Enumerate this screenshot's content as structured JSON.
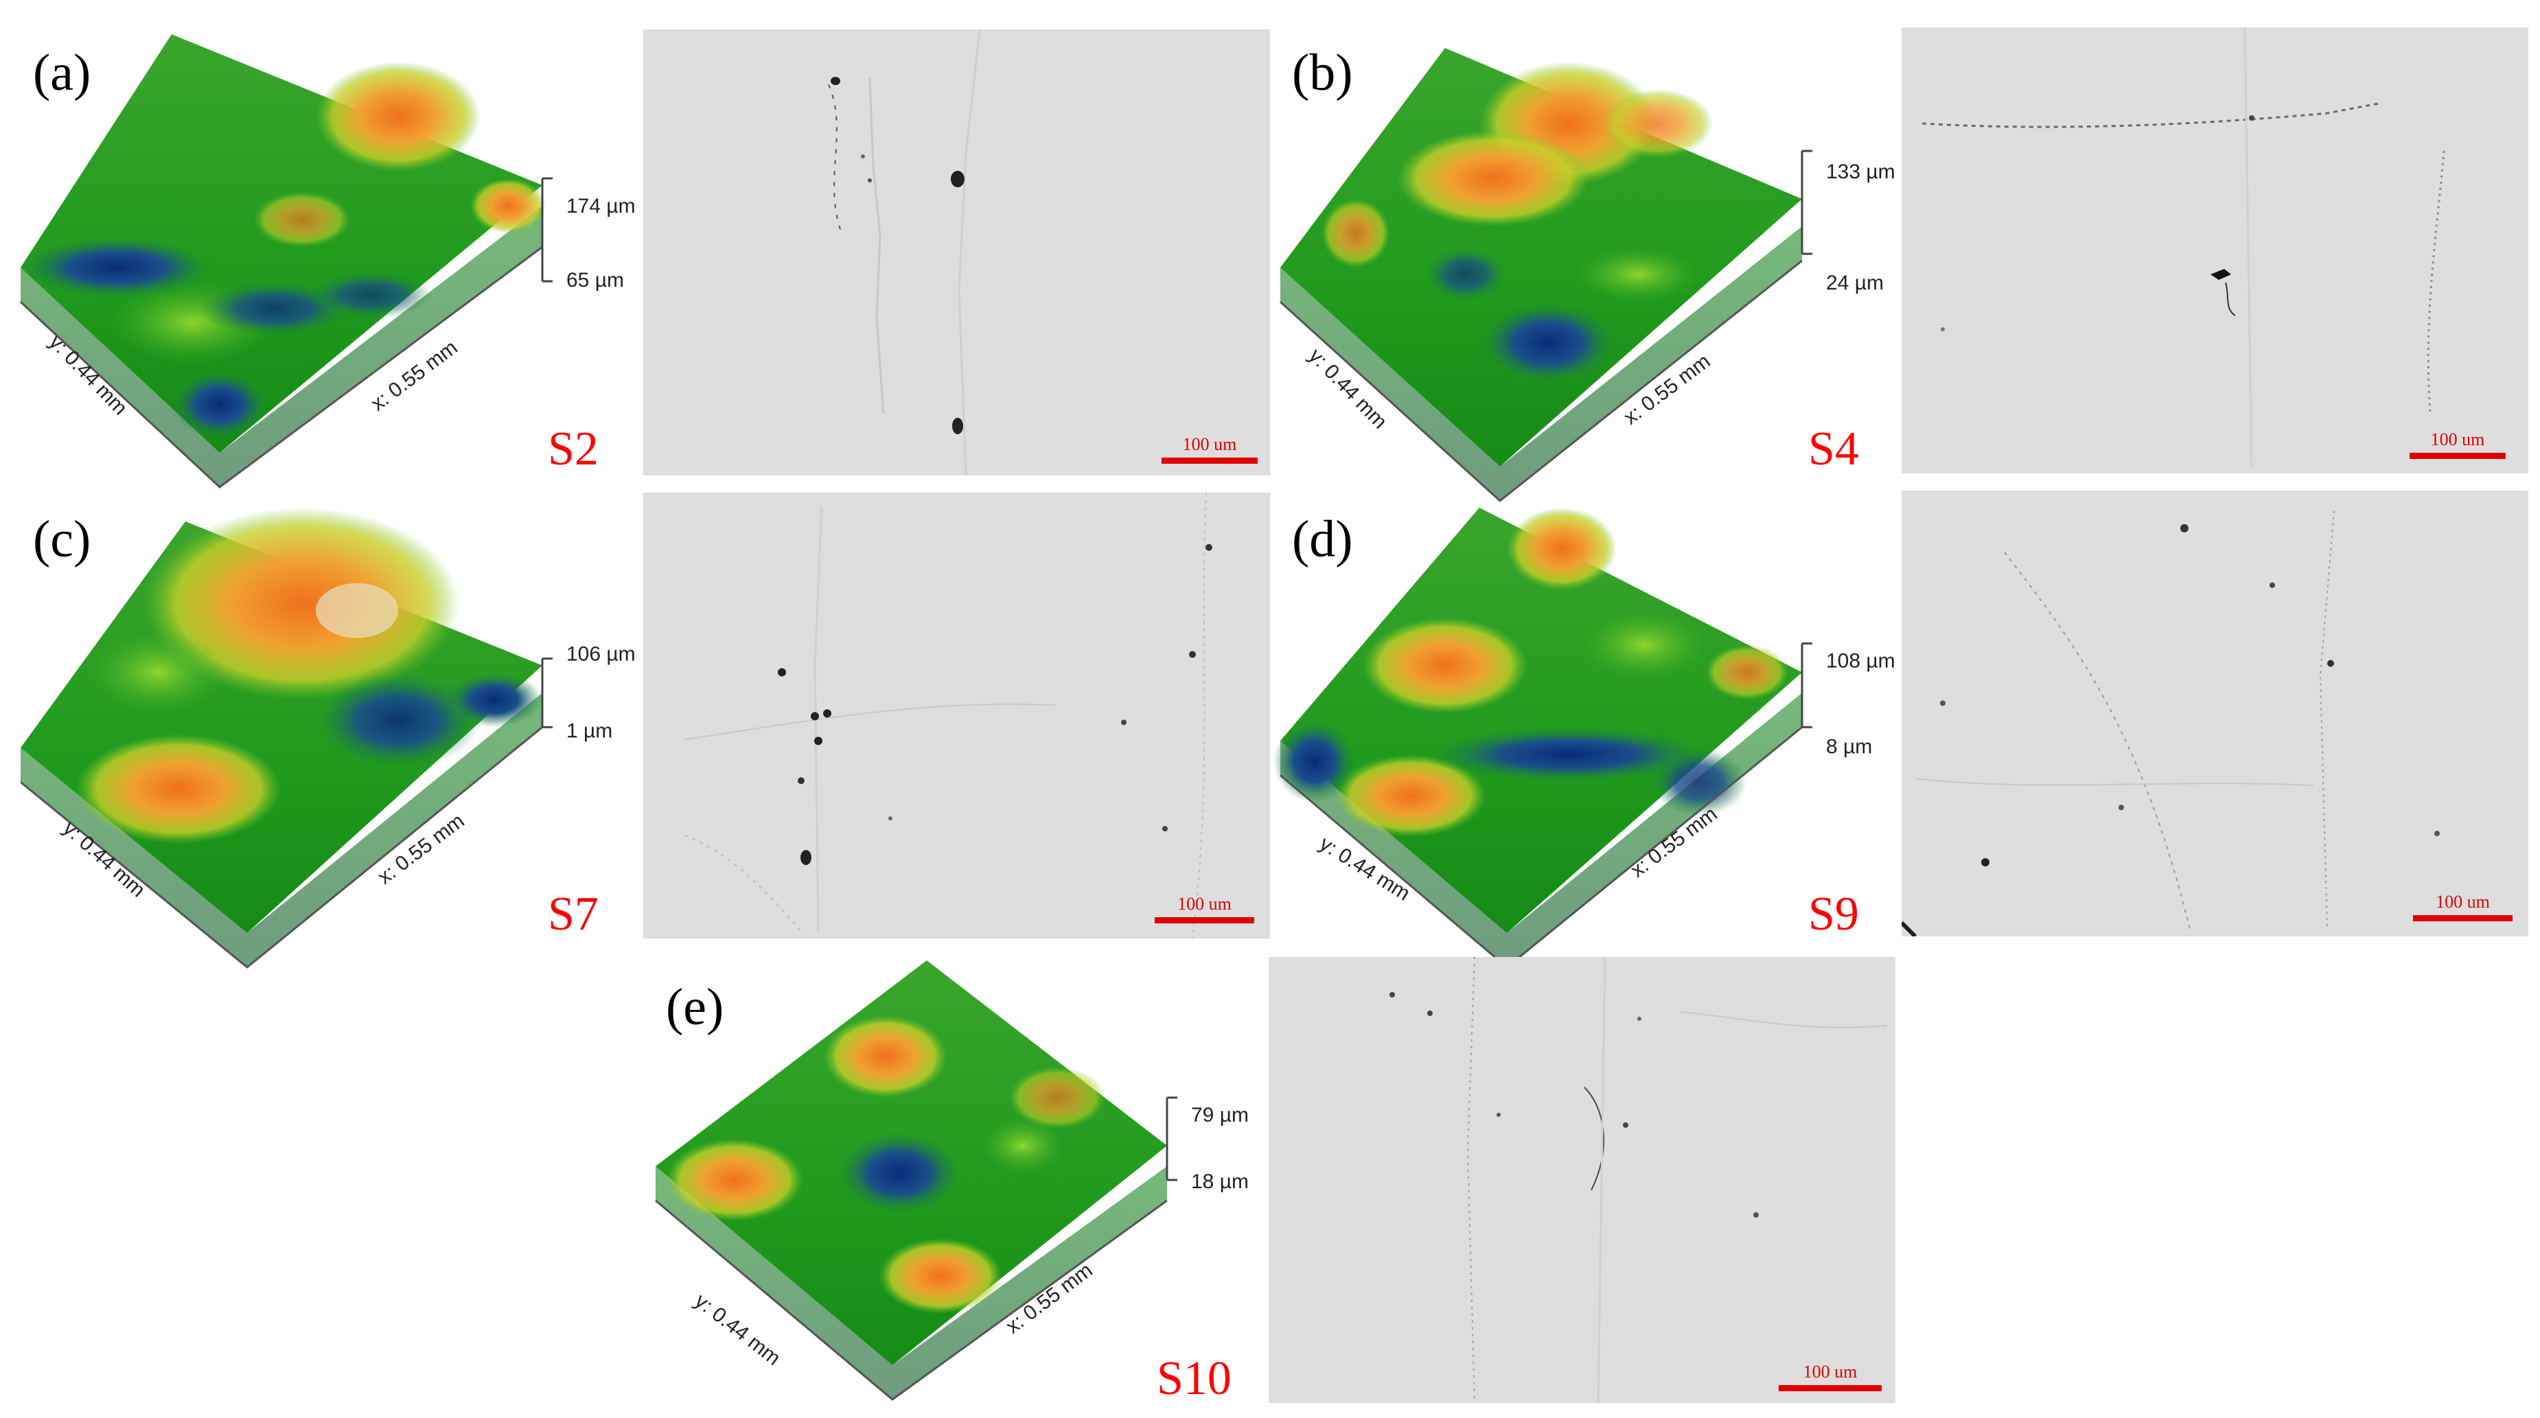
{
  "colors": {
    "sample_label": "#ff0000",
    "scale_bar": "#e00000",
    "micrograph_background": "#dedede"
  },
  "panels": [
    {
      "letter": "(a)",
      "sample": "S2",
      "z_top": "174 µm",
      "z_bottom": "65 µm",
      "x_axis": "x: 0.55 mm",
      "y_axis": "y: 0.44 mm",
      "scale_bar": "100 um"
    },
    {
      "letter": "(b)",
      "sample": "S4",
      "z_top": "133 µm",
      "z_bottom": "24 µm",
      "x_axis": "x: 0.55 mm",
      "y_axis": "y: 0.44 mm",
      "scale_bar": "100 um"
    },
    {
      "letter": "(c)",
      "sample": "S7",
      "z_top": "106 µm",
      "z_bottom": "1 µm",
      "x_axis": "x: 0.55 mm",
      "y_axis": "y: 0.44 mm",
      "scale_bar": "100 um"
    },
    {
      "letter": "(d)",
      "sample": "S9",
      "z_top": "108 µm",
      "z_bottom": "8 µm",
      "x_axis": "x: 0.55 mm",
      "y_axis": "y: 0.44 mm",
      "scale_bar": "100 um"
    },
    {
      "letter": "(e)",
      "sample": "S10",
      "z_top": "79 µm",
      "z_bottom": "18 µm",
      "x_axis": "x: 0.55 mm",
      "y_axis": "y: 0.44 mm",
      "scale_bar": "100 um"
    }
  ]
}
